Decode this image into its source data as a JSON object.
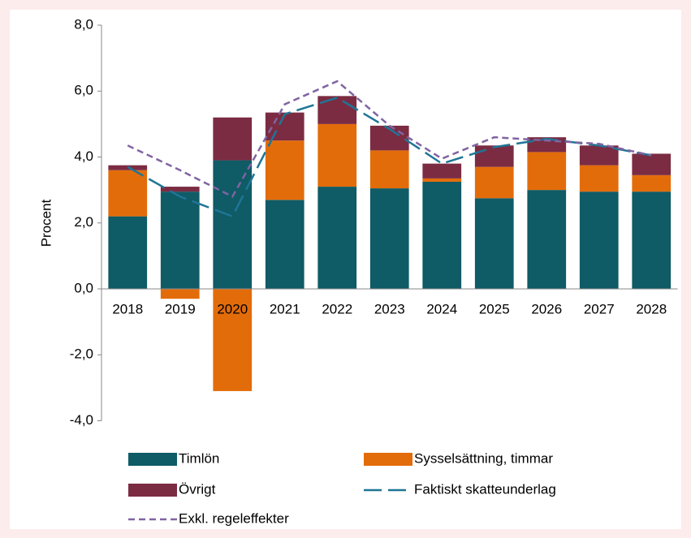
{
  "chart_data": {
    "type": "bar",
    "y_label": "Procent",
    "categories": [
      "2018",
      "2019",
      "2020",
      "2021",
      "2022",
      "2023",
      "2024",
      "2025",
      "2026",
      "2027",
      "2028"
    ],
    "series": [
      {
        "name": "Timlön",
        "type": "bar",
        "color": "#0f5b66",
        "values": [
          2.2,
          2.95,
          3.9,
          2.7,
          3.1,
          3.05,
          3.25,
          2.75,
          3.0,
          2.95,
          2.95
        ]
      },
      {
        "name": "Sysselsättning, timmar",
        "type": "bar",
        "color": "#e36c0a",
        "values": [
          1.4,
          -0.3,
          -3.1,
          1.8,
          1.9,
          1.15,
          0.1,
          0.95,
          1.15,
          0.8,
          0.5
        ]
      },
      {
        "name": "Övrigt",
        "type": "bar",
        "color": "#7b2c42",
        "values": [
          0.15,
          0.15,
          1.3,
          0.85,
          0.85,
          0.75,
          0.45,
          0.65,
          0.45,
          0.6,
          0.65
        ]
      },
      {
        "name": "Faktiskt skatteunderlag",
        "type": "line",
        "color": "#1f7596",
        "dash": "long",
        "values": [
          3.7,
          2.8,
          2.2,
          5.3,
          5.8,
          4.85,
          3.8,
          4.3,
          4.55,
          4.35,
          4.05
        ]
      },
      {
        "name": "Exkl. regeleffekter",
        "type": "line",
        "color": "#8064a2",
        "dash": "short",
        "values": [
          4.35,
          3.6,
          2.8,
          5.6,
          6.3,
          4.95,
          3.95,
          4.6,
          4.5,
          4.4,
          4.05
        ]
      }
    ],
    "ylim": [
      -4,
      8
    ],
    "yticks": [
      {
        "value": -4,
        "label": "-4,0"
      },
      {
        "value": -2,
        "label": "-2,0"
      },
      {
        "value": 0,
        "label": "0,0"
      },
      {
        "value": 2,
        "label": "2,0"
      },
      {
        "value": 4,
        "label": "4,0"
      },
      {
        "value": 6,
        "label": "6,0"
      },
      {
        "value": 8,
        "label": "8,0"
      }
    ],
    "grid": false
  }
}
